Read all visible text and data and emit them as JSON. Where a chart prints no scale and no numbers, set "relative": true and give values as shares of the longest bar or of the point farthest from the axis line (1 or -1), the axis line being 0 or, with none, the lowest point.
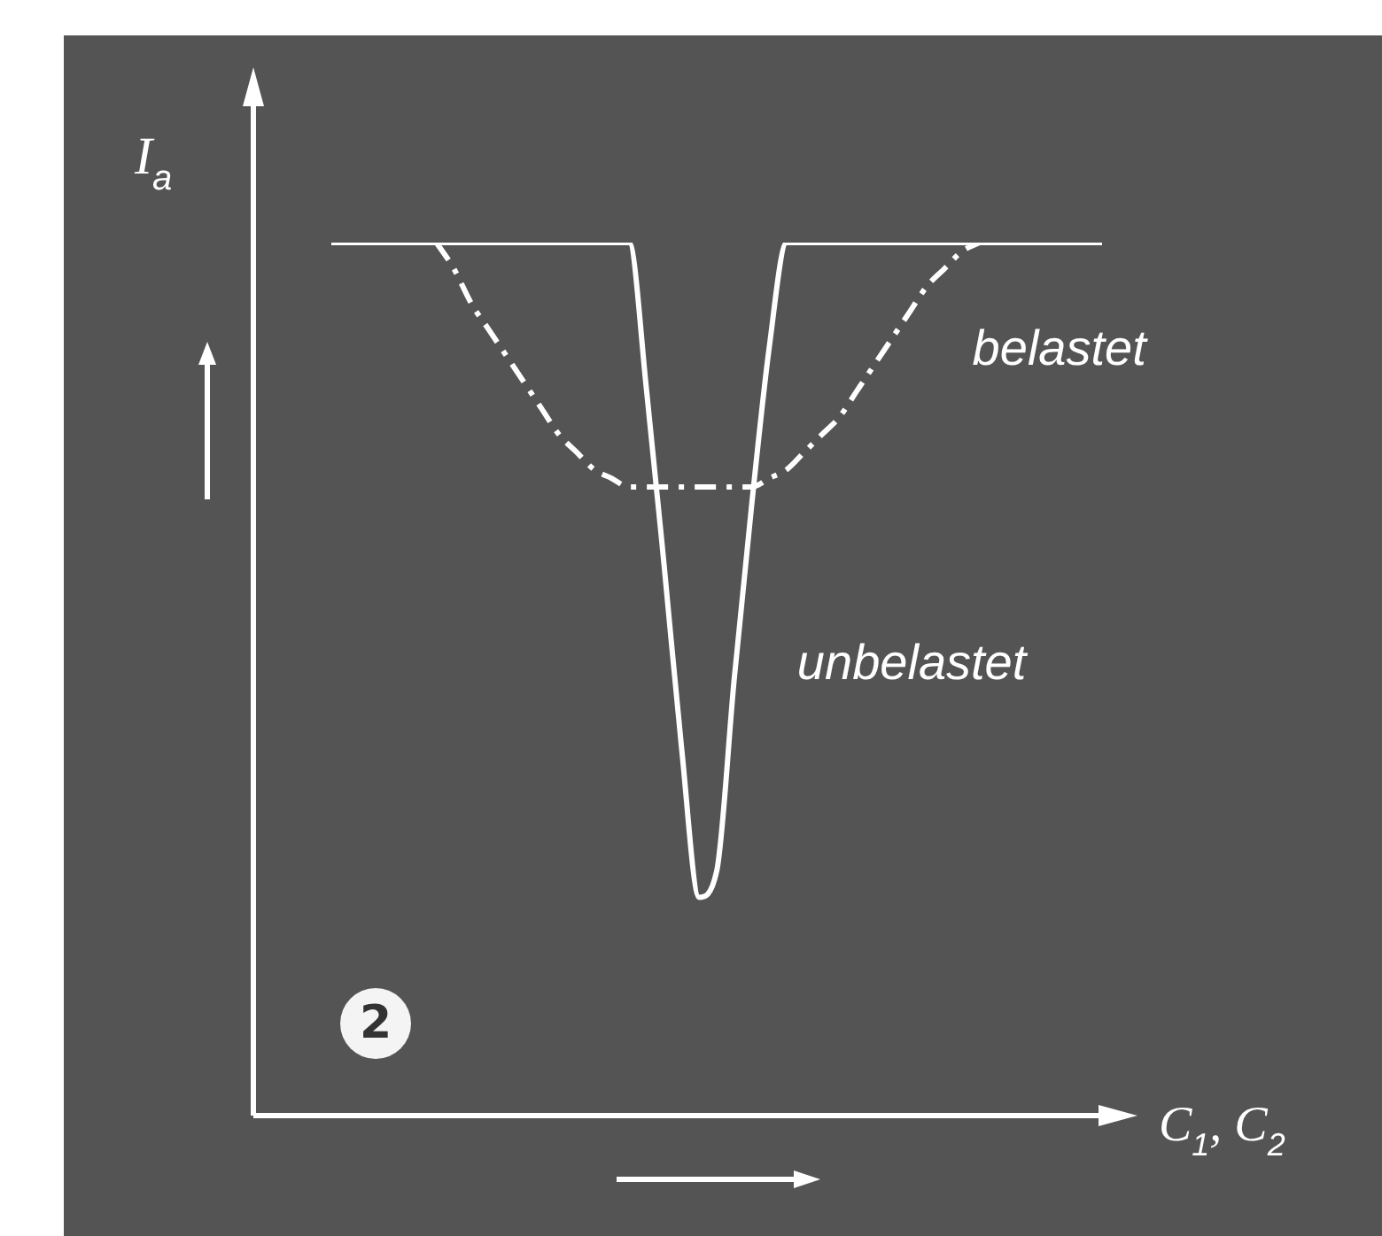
{
  "chart_data": {
    "type": "line",
    "relative": true,
    "ylabel": "I$_{a}$",
    "xlabel": "C$_{1}$, C$_{2}$",
    "annotations": [
      "2"
    ],
    "categories": [
      null,
      null,
      null,
      null,
      null,
      null,
      null,
      null,
      null,
      null,
      null,
      null,
      null,
      null,
      null,
      null,
      null,
      null,
      null,
      null,
      null,
      null,
      null,
      null,
      null,
      null,
      null,
      null,
      null,
      null,
      null,
      null,
      null,
      null,
      null,
      null,
      null,
      null,
      null,
      null,
      null,
      null,
      null,
      null,
      null
    ],
    "series": [
      {
        "name": "unbelastet",
        "color": "#ffffff",
        "line_style": "solid",
        "values": [
          1,
          1,
          1,
          1,
          1,
          1,
          1,
          1,
          1,
          1,
          1,
          1,
          1,
          1,
          1,
          1,
          1,
          1,
          0.83,
          0.63,
          0.42,
          0.25,
          0.28,
          0.5,
          0.7,
          0.88,
          1,
          1,
          1,
          1,
          1,
          1,
          1,
          1,
          1,
          1,
          1,
          1,
          1,
          1,
          1,
          1,
          1,
          1,
          1
        ]
      },
      {
        "name": "belastet",
        "color": "#ffffff",
        "line_style": "dashed",
        "values": [
          null,
          null,
          null,
          null,
          null,
          null,
          1,
          0.97,
          0.93,
          0.9,
          0.87,
          0.84,
          0.81,
          0.78,
          0.76,
          0.74,
          0.73,
          0.72,
          0.72,
          0.72,
          0.72,
          0.72,
          0.72,
          0.72,
          0.72,
          0.73,
          0.74,
          0.76,
          0.78,
          0.8,
          0.83,
          0.86,
          0.89,
          0.92,
          0.95,
          0.97,
          0.99,
          1,
          null,
          null,
          null,
          null,
          null,
          null,
          null
        ]
      }
    ]
  }
}
